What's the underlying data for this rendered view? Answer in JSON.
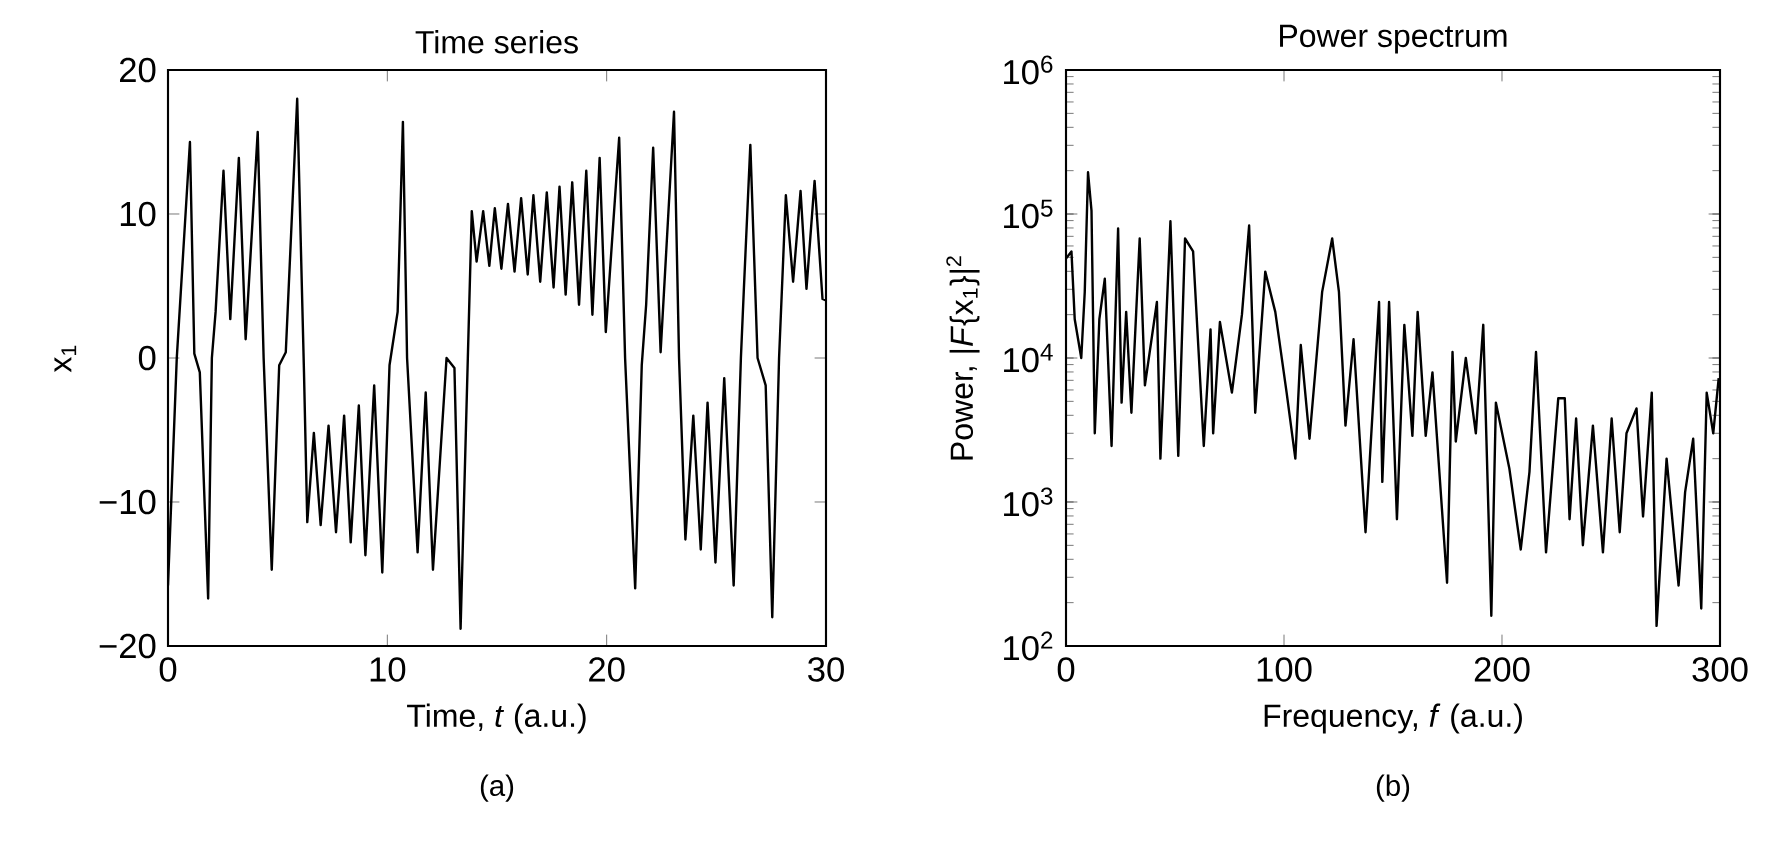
{
  "chart_data": [
    {
      "type": "line",
      "title": "Time series",
      "xlabel": "Time, *t* (a.u.)",
      "ylabel": "x$_{1}$",
      "annotations": [
        "(a)"
      ],
      "color": "#000000",
      "marker": "none",
      "line_style": "solid",
      "grid": false,
      "xlim": [
        0,
        30
      ],
      "ylim": [
        -20,
        20
      ],
      "xticks": [
        0,
        10,
        20,
        30
      ],
      "yticks": [
        {
          "value": -20,
          "label": "−20"
        },
        {
          "value": -10,
          "label": "−10"
        },
        0,
        10,
        20
      ],
      "x": [
        0,
        0.4,
        1.0,
        1.2,
        1.45,
        1.83,
        2.0,
        2.17,
        2.53,
        2.84,
        3.23,
        3.54,
        4.09,
        4.36,
        4.73,
        5.07,
        5.37,
        5.89,
        6.2,
        6.35,
        6.65,
        6.96,
        7.32,
        7.66,
        8.03,
        8.33,
        8.7,
        9.0,
        9.4,
        9.77,
        10.1,
        10.47,
        10.71,
        10.9,
        11.38,
        11.75,
        12.08,
        12.7,
        13.06,
        13.34,
        13.67,
        13.85,
        14.07,
        14.37,
        14.65,
        14.9,
        15.2,
        15.5,
        15.8,
        16.1,
        16.4,
        16.66,
        16.97,
        17.27,
        17.58,
        17.85,
        18.13,
        18.43,
        18.74,
        19.07,
        19.35,
        19.68,
        19.96,
        20.57,
        20.84,
        21.3,
        21.6,
        21.8,
        22.12,
        22.46,
        23.07,
        23.3,
        23.59,
        23.95,
        24.29,
        24.6,
        24.96,
        25.36,
        25.79,
        26.12,
        26.25,
        26.55,
        26.88,
        27.25,
        27.55,
        27.86,
        28.17,
        28.5,
        28.84,
        29.11,
        29.48,
        29.84,
        30
      ],
      "values": [
        -15.8,
        0,
        15,
        0.3,
        -1,
        -16.7,
        0,
        3.2,
        13,
        2.7,
        13.9,
        1.3,
        15.7,
        0,
        -14.7,
        -0.5,
        0.4,
        18,
        -1,
        -11.4,
        -5.2,
        -11.6,
        -4.7,
        -12.1,
        -4.0,
        -12.8,
        -3.3,
        -13.7,
        -1.9,
        -14.9,
        -0.5,
        3.2,
        16.4,
        0,
        -13.5,
        -2.4,
        -14.7,
        0,
        -0.7,
        -18.8,
        0,
        10.2,
        6.7,
        10.2,
        6.4,
        10.4,
        6.2,
        10.7,
        6.0,
        11.1,
        5.8,
        11.3,
        5.3,
        11.5,
        4.9,
        11.9,
        4.4,
        12.2,
        3.7,
        13,
        3.0,
        13.9,
        1.8,
        15.3,
        0,
        -16,
        -0.5,
        3.7,
        14.6,
        0.4,
        17.1,
        0,
        -12.6,
        -4,
        -13.3,
        -3.1,
        -14.2,
        -1.4,
        -15.8,
        0,
        4.6,
        14.8,
        0,
        -1.9,
        -18,
        0,
        11.3,
        5.3,
        11.6,
        4.8,
        12.3,
        4.1,
        4.0
      ]
    },
    {
      "type": "line",
      "title": "Power spectrum",
      "xlabel": "Frequency, *f* (a.u.)",
      "ylabel": "Power, |*F*{x$_{1}$}|$^{2}$",
      "annotations": [
        "(b)"
      ],
      "color": "#000000",
      "marker": "none",
      "line_style": "solid",
      "grid": false,
      "log": "y",
      "xlim": [
        0,
        300
      ],
      "ylim": [
        100,
        1000000
      ],
      "xticks": [
        0,
        100,
        200,
        300
      ],
      "yticks": [
        {
          "value": 100,
          "label": "10$^{2}$"
        },
        {
          "value": 1000,
          "label": "10$^{3}$"
        },
        {
          "value": 10000,
          "label": "10$^{4}$"
        },
        {
          "value": 100000,
          "label": "10$^{5}$"
        },
        {
          "value": 1000000,
          "label": "10$^{6}$"
        }
      ],
      "x": [
        0,
        2.5,
        4,
        7,
        8.6,
        10.1,
        11.7,
        13.2,
        15.3,
        17.8,
        20.9,
        23.9,
        25.5,
        27.6,
        30,
        33.8,
        36.2,
        41.7,
        43.3,
        47.9,
        51.5,
        54.6,
        58.3,
        63.2,
        66.3,
        67.5,
        70.6,
        76.1,
        80.7,
        84,
        86.8,
        91.4,
        96,
        101.2,
        105.2,
        107.7,
        111.7,
        117.5,
        122.1,
        125.2,
        128.2,
        131.9,
        137.4,
        143.6,
        145.1,
        148.2,
        151.8,
        155.2,
        158.9,
        161.3,
        165,
        168.1,
        174.8,
        177.3,
        178.8,
        183.4,
        188,
        191.4,
        195.1,
        197.2,
        203.4,
        208.6,
        212.6,
        215.6,
        220.2,
        225.8,
        228.8,
        231,
        234,
        237.1,
        241.7,
        246.3,
        250.3,
        254,
        257.1,
        261.7,
        264.7,
        268.7,
        270.9,
        275.5,
        281,
        284,
        287.7,
        291.4,
        293.9,
        296.9,
        299.4
      ],
      "values": [
        49000,
        55000,
        18600,
        10000,
        28800,
        195000,
        105000,
        3000,
        18600,
        35500,
        2450,
        79400,
        4900,
        20900,
        4170,
        67600,
        6460,
        24500,
        2000,
        89100,
        2090,
        67600,
        55000,
        2450,
        15800,
        3000,
        17800,
        5750,
        20000,
        83200,
        4170,
        39800,
        20900,
        5750,
        2000,
        12300,
        2750,
        28800,
        67600,
        28800,
        3390,
        13500,
        617,
        24500,
        1380,
        24500,
        759,
        17000,
        2880,
        20900,
        2880,
        7940,
        275,
        11000,
        2630,
        10000,
        3000,
        17000,
        162,
        4900,
        1700,
        468,
        1620,
        11000,
        447,
        5250,
        5250,
        759,
        3800,
        501,
        3390,
        447,
        3800,
        617,
        3000,
        4470,
        794,
        5750,
        138,
        2000,
        263,
        1170,
        2750,
        182,
        5750,
        3000,
        7240
      ]
    }
  ]
}
